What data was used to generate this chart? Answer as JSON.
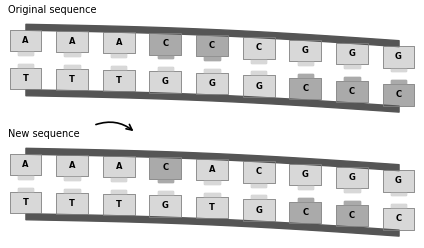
{
  "title1": "Original sequence",
  "title2": "New sequence",
  "orig_top": [
    "A",
    "A",
    "A",
    "C",
    "C",
    "C",
    "G",
    "G",
    "G"
  ],
  "orig_bot": [
    "T",
    "T",
    "T",
    "G",
    "G",
    "G",
    "C",
    "C",
    "C"
  ],
  "orig_top_dark": [
    false,
    false,
    false,
    true,
    true,
    false,
    false,
    false,
    false
  ],
  "orig_bot_dark": [
    false,
    false,
    false,
    false,
    false,
    false,
    true,
    true,
    true
  ],
  "new_top": [
    "A",
    "A",
    "A",
    "C",
    "A",
    "C",
    "G",
    "G",
    "G"
  ],
  "new_bot": [
    "T",
    "T",
    "T",
    "G",
    "T",
    "G",
    "C",
    "C",
    "C"
  ],
  "new_top_dark": [
    false,
    false,
    false,
    true,
    false,
    false,
    false,
    false,
    false
  ],
  "new_bot_dark": [
    false,
    false,
    false,
    false,
    false,
    false,
    true,
    true,
    false
  ],
  "light_gray": "#d8d8d8",
  "mid_gray": "#aaaaaa",
  "white_box": "#f5f5f5",
  "rail_color": "#555555",
  "bg_color": "#ffffff",
  "text_color": "#000000"
}
